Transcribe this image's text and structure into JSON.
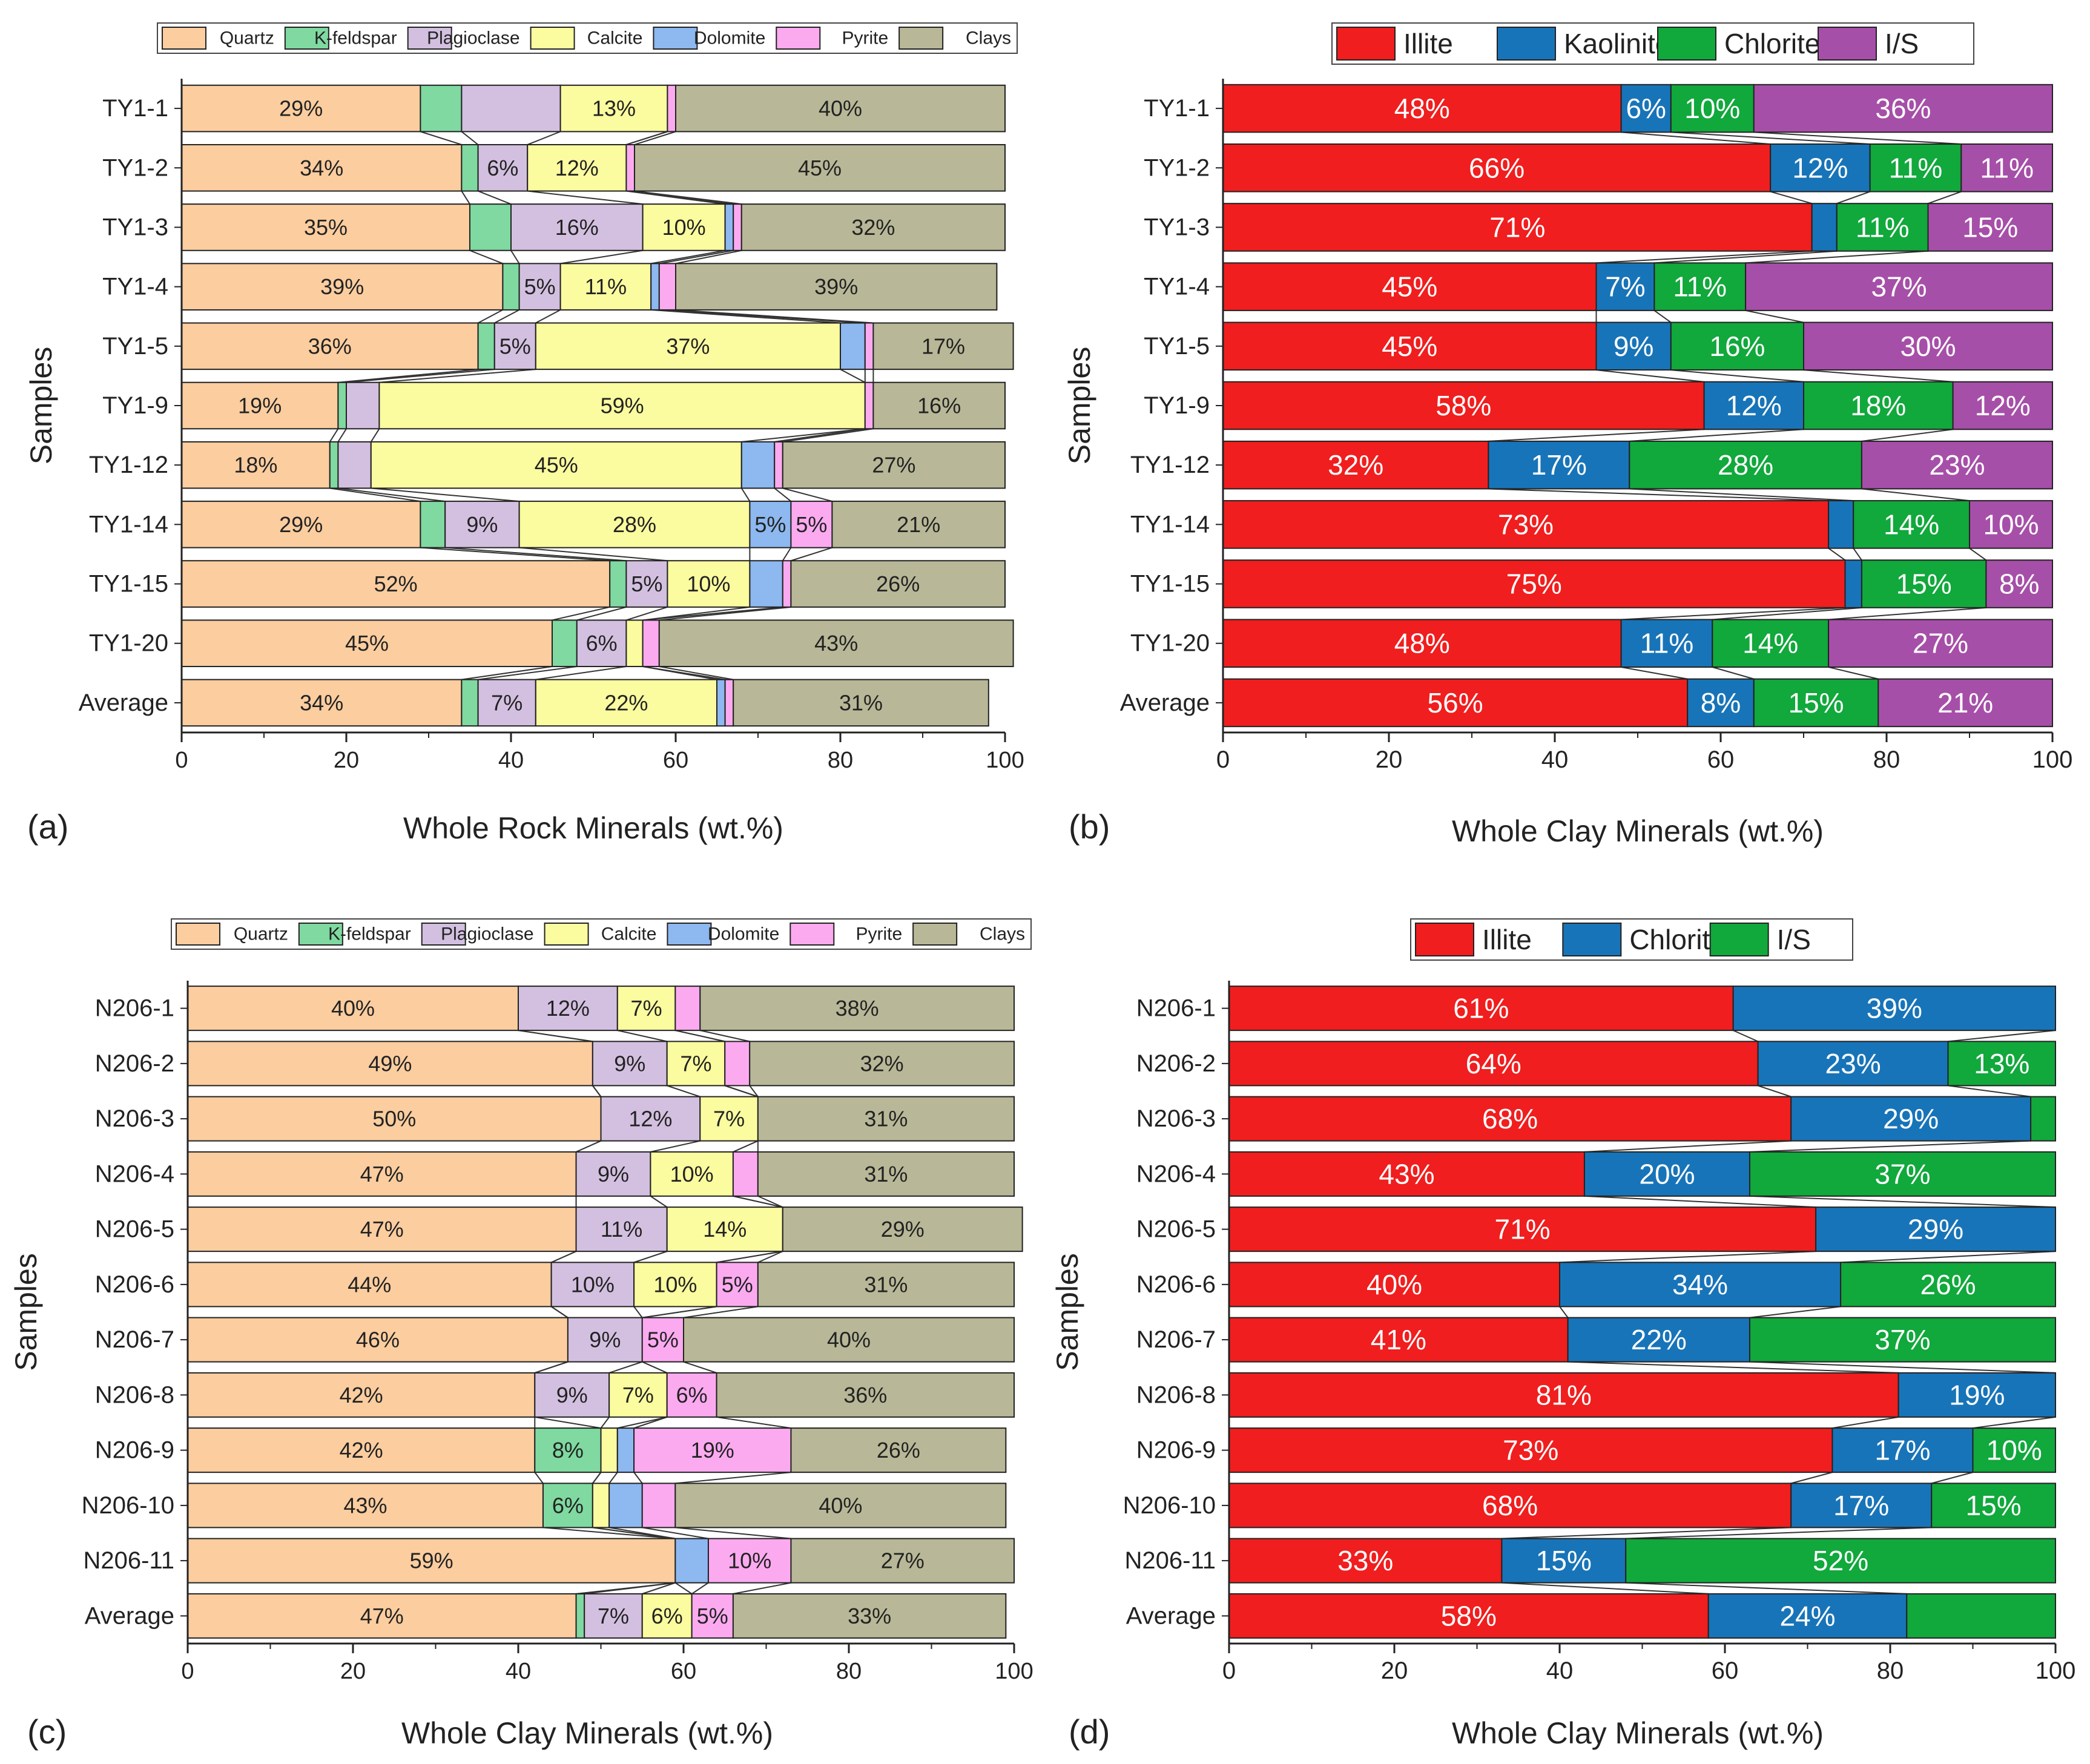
{
  "figure": {
    "y_axis_title": "Samples"
  },
  "chart_data": [
    {
      "type": "stacked-bar-horizontal",
      "panel_label": "(a)",
      "xlabel": "Whole Rock Minerals (wt.%)",
      "ylabel": "Samples",
      "xlim": [
        0,
        100
      ],
      "xticks": [
        0,
        20,
        40,
        60,
        80,
        100
      ],
      "legend_position": "top",
      "categories": [
        "TY1-1",
        "TY1-2",
        "TY1-3",
        "TY1-4",
        "TY1-5",
        "TY1-9",
        "TY1-12",
        "TY1-14",
        "TY1-15",
        "TY1-20",
        "Average"
      ],
      "series": [
        {
          "name": "Quartz",
          "color": "#fbcd9f",
          "values": [
            29,
            34,
            35,
            39,
            36,
            19,
            18,
            29,
            52,
            45,
            34
          ]
        },
        {
          "name": "K-feldspar",
          "color": "#7fd9a0",
          "values": [
            5,
            2,
            5,
            2,
            2,
            1,
            1,
            3,
            2,
            3,
            2
          ]
        },
        {
          "name": "Plagioclase",
          "color": "#d3c0e0",
          "values": [
            12,
            6,
            16,
            5,
            5,
            4,
            4,
            9,
            5,
            6,
            7
          ]
        },
        {
          "name": "Calcite",
          "color": "#fbfb9f",
          "values": [
            13,
            12,
            10,
            11,
            37,
            59,
            45,
            28,
            10,
            2,
            22
          ]
        },
        {
          "name": "Dolomite",
          "color": "#8db8f0",
          "values": [
            0,
            0,
            1,
            1,
            3,
            0,
            4,
            5,
            4,
            0,
            1
          ]
        },
        {
          "name": "Pyrite",
          "color": "#fbaaf0",
          "values": [
            1,
            1,
            1,
            2,
            1,
            1,
            1,
            5,
            1,
            2,
            1
          ]
        },
        {
          "name": "Clays",
          "color": "#b8b898",
          "values": [
            40,
            45,
            32,
            39,
            17,
            16,
            27,
            21,
            26,
            43,
            31
          ]
        }
      ],
      "data_labels": [
        [
          "29%",
          "",
          "",
          "13%",
          "",
          "",
          "40%"
        ],
        [
          "34%",
          "",
          "6%",
          "12%",
          "",
          "",
          "45%"
        ],
        [
          "35%",
          "",
          "16%",
          "10%",
          "",
          "",
          "32%"
        ],
        [
          "39%",
          "",
          "5%",
          "11%",
          "",
          "",
          "39%"
        ],
        [
          "36%",
          "",
          "5%",
          "37%",
          "",
          "",
          "17%"
        ],
        [
          "19%",
          "",
          "",
          "59%",
          "",
          "",
          "16%"
        ],
        [
          "18%",
          "",
          "",
          "45%",
          "",
          "",
          "27%"
        ],
        [
          "29%",
          "",
          "9%",
          "28%",
          "5%",
          "5%",
          "21%"
        ],
        [
          "52%",
          "",
          "5%",
          "10%",
          "",
          "",
          "26%"
        ],
        [
          "45%",
          "",
          "6%",
          "",
          "",
          "",
          "43%"
        ],
        [
          "34%",
          "",
          "7%",
          "22%",
          "",
          "",
          "31%"
        ]
      ]
    },
    {
      "type": "stacked-bar-horizontal",
      "panel_label": "(b)",
      "xlabel": "Whole Clay Minerals (wt.%)",
      "ylabel": "Samples",
      "xlim": [
        0,
        100
      ],
      "xticks": [
        0,
        20,
        40,
        60,
        80,
        100
      ],
      "legend_position": "top",
      "categories": [
        "TY1-1",
        "TY1-2",
        "TY1-3",
        "TY1-4",
        "TY1-5",
        "TY1-9",
        "TY1-12",
        "TY1-14",
        "TY1-15",
        "TY1-20",
        "Average"
      ],
      "series": [
        {
          "name": "Illite",
          "color": "#f01e1e",
          "values": [
            48,
            66,
            71,
            45,
            45,
            58,
            32,
            73,
            75,
            48,
            56
          ]
        },
        {
          "name": "Kaolinite",
          "color": "#1874b8",
          "values": [
            6,
            12,
            3,
            7,
            9,
            12,
            17,
            3,
            2,
            11,
            8
          ]
        },
        {
          "name": "Chlorite",
          "color": "#11a83c",
          "values": [
            10,
            11,
            11,
            11,
            16,
            18,
            28,
            14,
            15,
            14,
            15
          ]
        },
        {
          "name": "I/S",
          "color": "#a64fa8",
          "values": [
            36,
            11,
            15,
            37,
            30,
            12,
            23,
            10,
            8,
            27,
            21
          ]
        }
      ],
      "data_labels": [
        [
          "48%",
          "6%",
          "10%",
          "36%"
        ],
        [
          "66%",
          "12%",
          "11%",
          "11%"
        ],
        [
          "71%",
          "",
          "11%",
          "15%"
        ],
        [
          "45%",
          "7%",
          "11%",
          "37%"
        ],
        [
          "45%",
          "9%",
          "16%",
          "30%"
        ],
        [
          "58%",
          "12%",
          "18%",
          "12%"
        ],
        [
          "32%",
          "17%",
          "28%",
          "23%"
        ],
        [
          "73%",
          "",
          "14%",
          "10%"
        ],
        [
          "75%",
          "",
          "15%",
          "8%"
        ],
        [
          "48%",
          "11%",
          "14%",
          "27%"
        ],
        [
          "56%",
          "8%",
          "15%",
          "21%"
        ]
      ]
    },
    {
      "type": "stacked-bar-horizontal",
      "panel_label": "(c)",
      "xlabel": "Whole Clay Minerals (wt.%)",
      "ylabel": "Samples",
      "xlim": [
        0,
        100
      ],
      "xticks": [
        0,
        20,
        40,
        60,
        80,
        100
      ],
      "legend_position": "top",
      "categories": [
        "N206-1",
        "N206-2",
        "N206-3",
        "N206-4",
        "N206-5",
        "N206-6",
        "N206-7",
        "N206-8",
        "N206-9",
        "N206-10",
        "N206-11",
        "Average"
      ],
      "series": [
        {
          "name": "Quartz",
          "color": "#fbcd9f",
          "values": [
            40,
            49,
            50,
            47,
            47,
            44,
            46,
            42,
            42,
            43,
            59,
            47
          ]
        },
        {
          "name": "K-feldspar",
          "color": "#7fd9a0",
          "values": [
            0,
            0,
            0,
            0,
            0,
            0,
            0,
            0,
            8,
            6,
            0,
            1
          ]
        },
        {
          "name": "Plagioclase",
          "color": "#d3c0e0",
          "values": [
            12,
            9,
            12,
            9,
            11,
            10,
            9,
            9,
            0,
            0,
            0,
            7
          ]
        },
        {
          "name": "Calcite",
          "color": "#fbfb9f",
          "values": [
            7,
            7,
            7,
            10,
            14,
            10,
            0,
            7,
            2,
            2,
            0,
            6
          ]
        },
        {
          "name": "Dolomite",
          "color": "#8db8f0",
          "values": [
            0,
            0,
            0,
            0,
            0,
            0,
            0,
            0,
            2,
            4,
            4,
            0
          ]
        },
        {
          "name": "Pyrite",
          "color": "#fbaaf0",
          "values": [
            3,
            3,
            0,
            3,
            0,
            5,
            5,
            6,
            19,
            4,
            10,
            5
          ]
        },
        {
          "name": "Clays",
          "color": "#b8b898",
          "values": [
            38,
            32,
            31,
            31,
            29,
            31,
            40,
            36,
            26,
            40,
            27,
            33
          ]
        }
      ],
      "data_labels": [
        [
          "40%",
          "",
          "12%",
          "7%",
          "",
          "",
          "38%"
        ],
        [
          "49%",
          "",
          "9%",
          "7%",
          "",
          "",
          "32%"
        ],
        [
          "50%",
          "",
          "12%",
          "7%",
          "",
          "",
          "31%"
        ],
        [
          "47%",
          "",
          "9%",
          "10%",
          "",
          "",
          "31%"
        ],
        [
          "47%",
          "",
          "11%",
          "14%",
          "",
          "",
          "29%"
        ],
        [
          "44%",
          "",
          "10%",
          "10%",
          "",
          "5%",
          "31%"
        ],
        [
          "46%",
          "",
          "9%",
          "",
          "",
          "5%",
          "40%"
        ],
        [
          "42%",
          "",
          "9%",
          "7%",
          "",
          "6%",
          "36%"
        ],
        [
          "42%",
          "8%",
          "",
          "",
          "",
          "19%",
          "26%"
        ],
        [
          "43%",
          "6%",
          "",
          "",
          "",
          "",
          "40%"
        ],
        [
          "59%",
          "",
          "",
          "",
          "",
          "10%",
          "27%"
        ],
        [
          "47%",
          "",
          "7%",
          "6%",
          "",
          "5%",
          "33%"
        ]
      ]
    },
    {
      "type": "stacked-bar-horizontal",
      "panel_label": "(d)",
      "xlabel": "Whole Clay Minerals (wt.%)",
      "ylabel": "Samples",
      "xlim": [
        0,
        100
      ],
      "xticks": [
        0,
        20,
        40,
        60,
        80,
        100
      ],
      "legend_position": "top",
      "categories": [
        "N206-1",
        "N206-2",
        "N206-3",
        "N206-4",
        "N206-5",
        "N206-6",
        "N206-7",
        "N206-8",
        "N206-9",
        "N206-10",
        "N206-11",
        "Average"
      ],
      "series": [
        {
          "name": "Illite",
          "color": "#f01e1e",
          "values": [
            61,
            64,
            68,
            43,
            71,
            40,
            41,
            81,
            73,
            68,
            33,
            58
          ]
        },
        {
          "name": "Chlorite",
          "color": "#1874b8",
          "values": [
            39,
            23,
            29,
            20,
            29,
            34,
            22,
            19,
            17,
            17,
            15,
            24
          ]
        },
        {
          "name": "I/S",
          "color": "#11a83c",
          "values": [
            0,
            13,
            3,
            37,
            0,
            26,
            37,
            0,
            10,
            15,
            52,
            18
          ]
        }
      ],
      "data_labels": [
        [
          "61%",
          "39%",
          ""
        ],
        [
          "64%",
          "23%",
          "13%"
        ],
        [
          "68%",
          "29%",
          ""
        ],
        [
          "43%",
          "20%",
          "37%"
        ],
        [
          "71%",
          "29%",
          ""
        ],
        [
          "40%",
          "34%",
          "26%"
        ],
        [
          "41%",
          "22%",
          "37%"
        ],
        [
          "81%",
          "19%",
          ""
        ],
        [
          "73%",
          "17%",
          "10%"
        ],
        [
          "68%",
          "17%",
          "15%"
        ],
        [
          "33%",
          "15%",
          "52%"
        ],
        [
          "58%",
          "24%",
          ""
        ]
      ]
    }
  ]
}
